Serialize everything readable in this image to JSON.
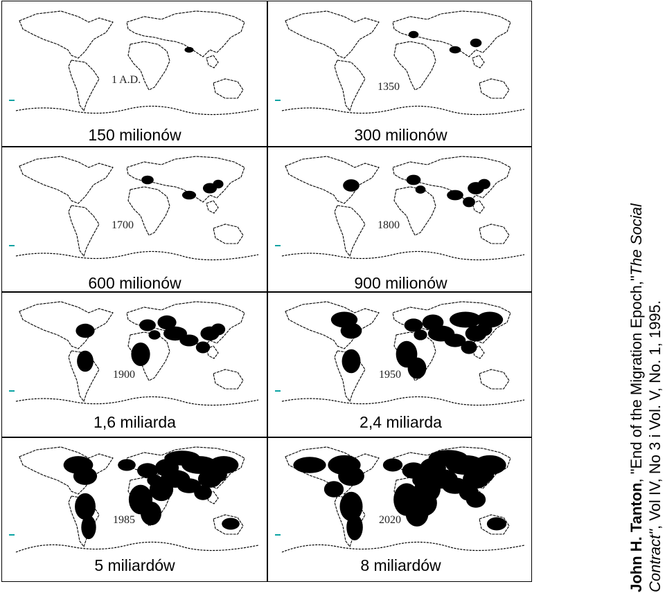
{
  "panels": [
    {
      "year": "1 A.D.",
      "population": "150 milionów",
      "density": 1
    },
    {
      "year": "1350",
      "population": "300 milionów",
      "density": 2
    },
    {
      "year": "1700",
      "population": "600 milionów",
      "density": 3
    },
    {
      "year": "1800",
      "population": "900 milionów",
      "density": 4
    },
    {
      "year": "1900",
      "population": "1,6 miliarda",
      "density": 5
    },
    {
      "year": "1950",
      "population": "2,4 miliarda",
      "density": 6
    },
    {
      "year": "1985",
      "population": "5 miliardów",
      "density": 7
    },
    {
      "year": "2020",
      "population": "8 miliardów",
      "density": 8
    }
  ],
  "credit": {
    "author": "John H. Tanton",
    "line1_rest": ", \"End of the Migration Epoch,\"",
    "journal_a": "The Social",
    "journal_b": "Contract\"",
    "line2_rest": ", Vol IV, No 3 i Vol. V, No. 1, 1995."
  },
  "colors": {
    "ink": "#000000",
    "marker": "#0aa3a3"
  }
}
